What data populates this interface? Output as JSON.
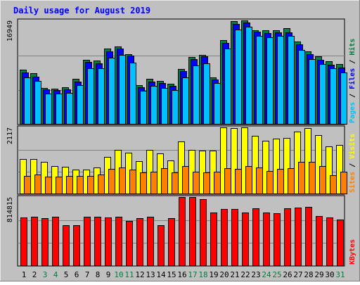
{
  "chart_data": {
    "type": "bar",
    "title": "Daily usage for August 2019",
    "days": [
      "1",
      "2",
      "3",
      "4",
      "5",
      "6",
      "7",
      "8",
      "9",
      "10",
      "11",
      "12",
      "13",
      "14",
      "15",
      "16",
      "17",
      "18",
      "19",
      "20",
      "21",
      "22",
      "23",
      "24",
      "25",
      "26",
      "27",
      "28",
      "29",
      "30",
      "31"
    ],
    "weekend_days": [
      "3",
      "4",
      "10",
      "11",
      "17",
      "18",
      "24",
      "25",
      "31"
    ],
    "panels": [
      {
        "id": "top",
        "max_label": "16949",
        "ymax": 16949,
        "axis_label_parts": [
          {
            "text": "Pages",
            "color": "#00c0ff"
          },
          {
            "text": " / ",
            "color": "#000000"
          },
          {
            "text": "Files",
            "color": "#0000ff"
          },
          {
            "text": " / ",
            "color": "#000000"
          },
          {
            "text": "Hits",
            "color": "#008040"
          }
        ],
        "series": [
          {
            "name": "Hits",
            "color": "#008040",
            "values": [
              8900,
              8350,
              5980,
              5860,
              6030,
              7460,
              10500,
              10460,
              12390,
              12690,
              11460,
              6420,
              7400,
              7060,
              6630,
              9100,
              11010,
              11360,
              7710,
              13770,
              16820,
              16950,
              15350,
              15310,
              15330,
              15700,
              13530,
              11950,
              11060,
              10290,
              9800
            ]
          },
          {
            "name": "Files",
            "color": "#0000ff",
            "values": [
              8460,
              7830,
              5700,
              5600,
              5740,
              7030,
              10150,
              9930,
              11900,
              12410,
              11170,
              6040,
              6970,
              6710,
              6300,
              8670,
              10640,
              11060,
              7360,
              13240,
              16320,
              16570,
              15100,
              14870,
              15000,
              15040,
              13030,
              11420,
              10580,
              9750,
              9290
            ]
          },
          {
            "name": "Pages",
            "color": "#00c0ff",
            "values": [
              7700,
              7080,
              5040,
              5040,
              5150,
              6370,
              9200,
              9170,
              10880,
              11390,
              10100,
              5540,
              6300,
              6010,
              5620,
              7650,
              9610,
              9930,
              6760,
              12350,
              15450,
              15890,
              14460,
              14230,
              14390,
              14440,
              12140,
              10670,
              9840,
              9140,
              8530
            ]
          }
        ]
      },
      {
        "id": "middle",
        "max_label": "2117",
        "ymax": 2117,
        "axis_label_parts": [
          {
            "text": "Sites",
            "color": "#ff8000"
          },
          {
            "text": " / ",
            "color": "#000000"
          },
          {
            "text": "Visits",
            "color": "#ffff00"
          }
        ],
        "series": [
          {
            "name": "Visits",
            "color": "#ffff00",
            "values": [
              1125,
              1105,
              1035,
              885,
              870,
              790,
              770,
              840,
              1190,
              1400,
              1320,
              1050,
              1400,
              1300,
              1080,
              1680,
              1410,
              1390,
              1390,
              2110,
              2095,
              2117,
              1860,
              1700,
              1765,
              1775,
              1975,
              2090,
              1880,
              1520,
              1570
            ]
          },
          {
            "name": "Sites",
            "color": "#ff8000",
            "values": [
              590,
              620,
              555,
              560,
              575,
              575,
              575,
              625,
              795,
              845,
              770,
              690,
              715,
              835,
              690,
              885,
              720,
              695,
              710,
              830,
              805,
              890,
              855,
              725,
              805,
              825,
              1015,
              1025,
              885,
              610,
              710
            ]
          }
        ]
      },
      {
        "id": "bottom",
        "max_label": "814815",
        "ymax": 814815,
        "axis_label_parts": [
          {
            "text": "KBytes",
            "color": "#ff0000"
          }
        ],
        "series": [
          {
            "name": "KBytes",
            "color": "#ff0000",
            "values": [
              574000,
              578000,
              568000,
              580000,
              481000,
              484000,
              579000,
              578000,
              575000,
              580000,
              532000,
              562000,
              581000,
              485000,
              568000,
              815000,
              813000,
              792000,
              632000,
              675000,
              675000,
              632000,
              683000,
              635000,
              621000,
              684000,
              692000,
              695000,
              591000,
              570000,
              550000
            ]
          }
        ]
      }
    ]
  }
}
